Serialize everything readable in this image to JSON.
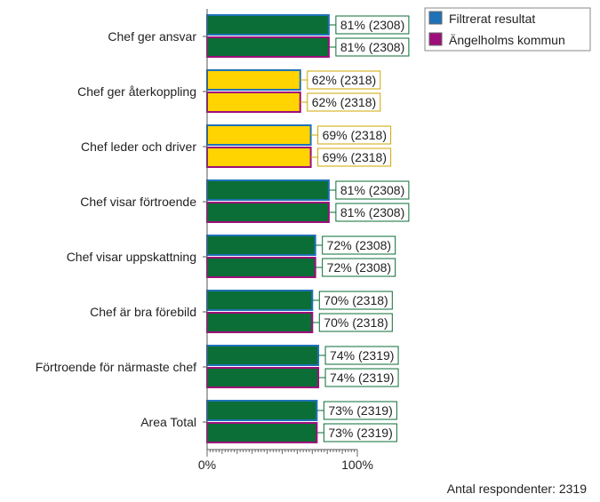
{
  "chart_data": {
    "type": "bar",
    "orientation": "horizontal",
    "categories": [
      "Chef ger ansvar",
      "Chef ger återkoppling",
      "Chef leder och driver",
      "Chef visar förtroende",
      "Chef visar uppskattning",
      "Chef är bra förebild",
      "Förtroende för närmaste chef",
      "Area Total"
    ],
    "series": [
      {
        "name": "Filtrerat resultat",
        "legend_color": "#1f72b8",
        "values": [
          81,
          62,
          69,
          81,
          72,
          70,
          74,
          73
        ],
        "labels": [
          "81% (2308)",
          "62% (2318)",
          "69% (2318)",
          "81% (2308)",
          "72% (2308)",
          "70% (2318)",
          "74% (2319)",
          "73% (2319)"
        ]
      },
      {
        "name": "Ängelholms kommun",
        "legend_color": "#9e0e7a",
        "values": [
          81,
          62,
          69,
          81,
          72,
          70,
          74,
          73
        ],
        "labels": [
          "81% (2308)",
          "62% (2318)",
          "69% (2318)",
          "81% (2308)",
          "72% (2308)",
          "70% (2318)",
          "74% (2319)",
          "73% (2319)"
        ]
      }
    ],
    "bar_fill_colors": [
      "#0a6e36",
      "#ffd400",
      "#ffd400",
      "#0a6e36",
      "#0a6e36",
      "#0a6e36",
      "#0a6e36",
      "#0a6e36"
    ],
    "label_border_colors": [
      "#0a6e36",
      "#cfa700",
      "#cfa700",
      "#0a6e36",
      "#0a6e36",
      "#0a6e36",
      "#0a6e36",
      "#0a6e36"
    ],
    "xlim": [
      0,
      100
    ],
    "x_ticks": [
      "0%",
      "100%"
    ],
    "grid": false,
    "legend_position": "top-right",
    "footer": "Antal respondenter: 2319"
  }
}
